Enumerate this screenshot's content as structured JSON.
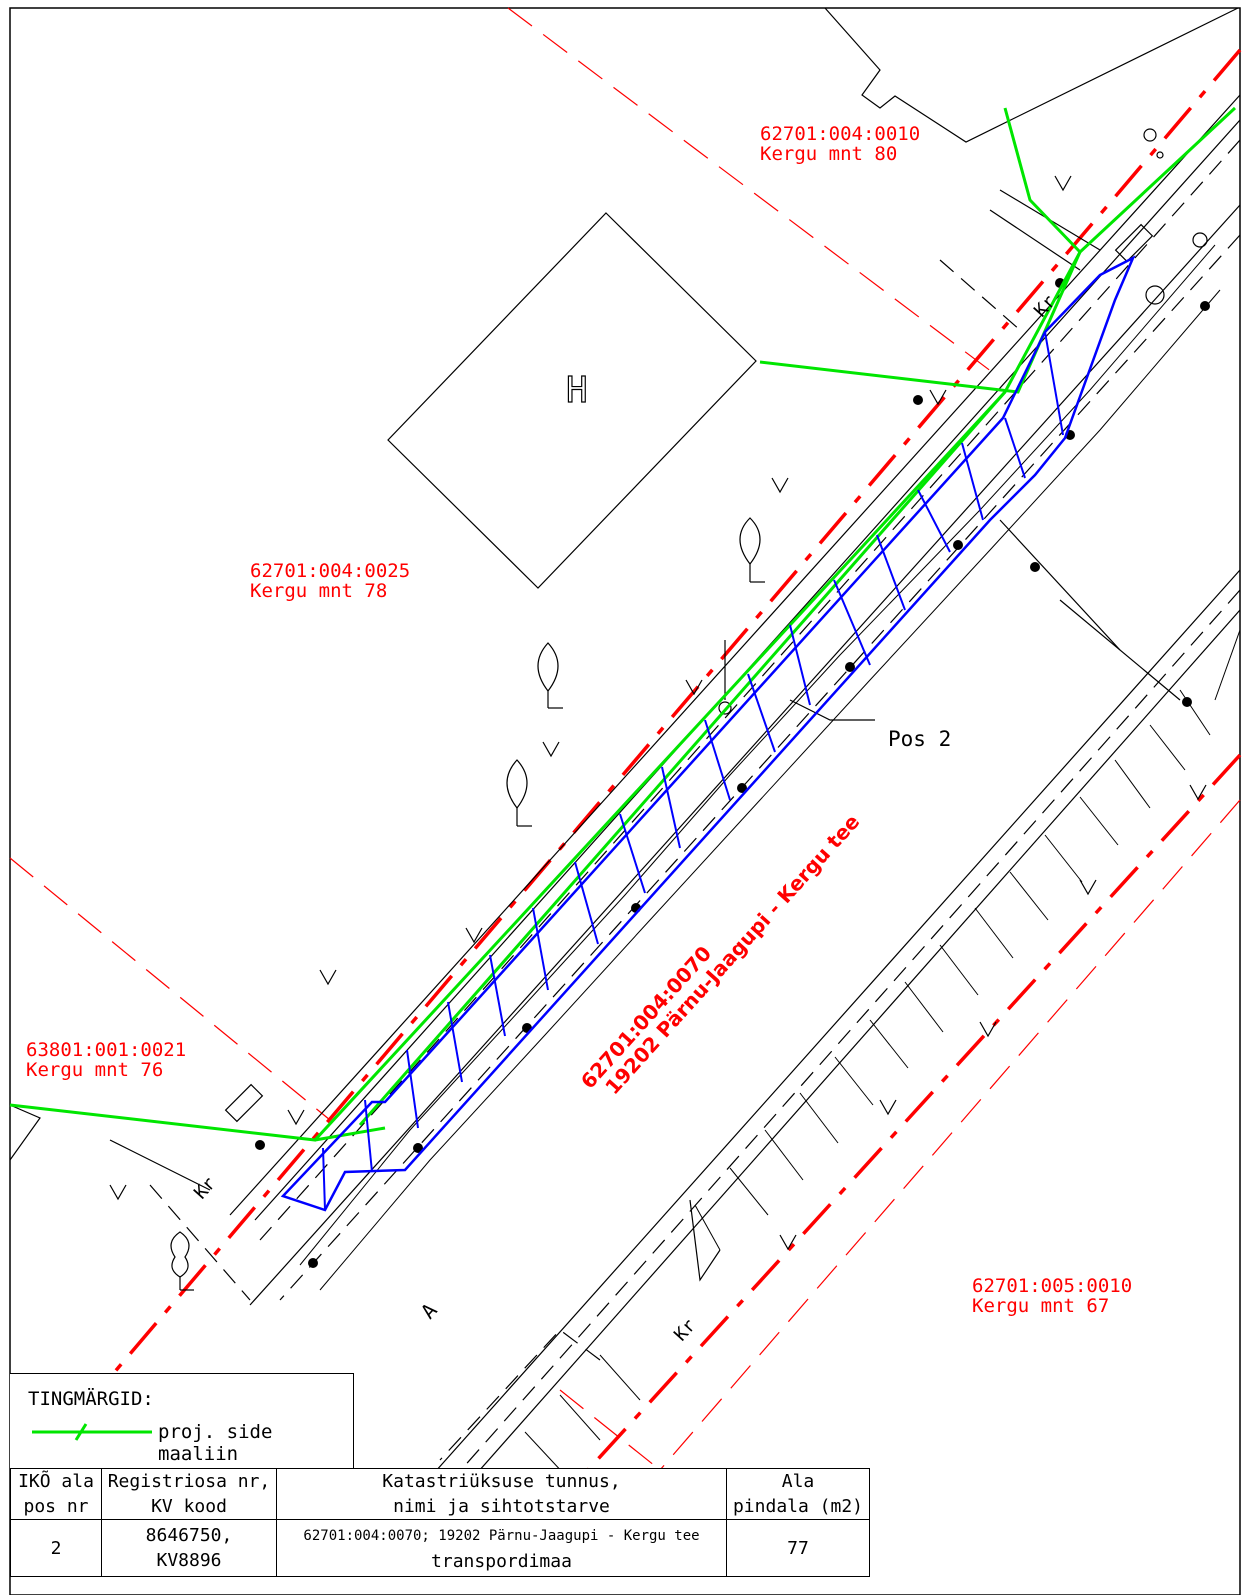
{
  "parcels": [
    {
      "id": "62701:004:0010",
      "name": "Kergu mnt 80"
    },
    {
      "id": "62701:004:0025",
      "name": "Kergu mnt 78"
    },
    {
      "id": "63801:001:0021",
      "name": "Kergu mnt 76"
    },
    {
      "id": "62701:005:0010",
      "name": "Kergu mnt 67"
    }
  ],
  "road": {
    "id": "62701:004:0070",
    "name": "19202 Pärnu-Jaagupi - Kergu tee"
  },
  "symbols": {
    "building": "H",
    "pos_label": "Pos 2",
    "area_mark": "A",
    "kr": "Kr"
  },
  "colors": {
    "parcel": "#ff0000",
    "cable": "#00e600",
    "area": "#0000ff"
  },
  "legend": {
    "title": "TINGMÄRGID:",
    "item": "proj. side maaliin"
  },
  "table": {
    "headers": [
      [
        "IKÕ ala",
        "pos nr"
      ],
      [
        "Registriosa nr,",
        "KV kood"
      ],
      [
        "Katastriüksuse tunnus,",
        "nimi ja sihtotstarve"
      ],
      [
        "Ala",
        "pindala (m2)"
      ]
    ],
    "row": {
      "pos": "2",
      "reg": [
        "8646750,",
        "KV8896"
      ],
      "cadastre": [
        "62701:004:0070; 19202 Pärnu-Jaagupi - Kergu tee",
        "transpordimaa"
      ],
      "area": "77"
    }
  }
}
